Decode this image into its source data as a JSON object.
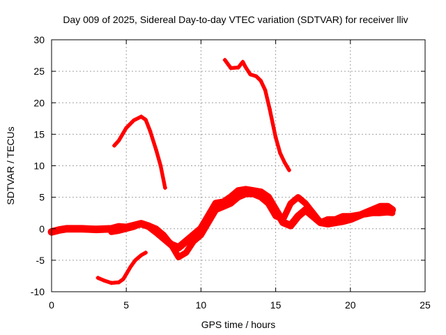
{
  "chart_data": {
    "type": "scatter",
    "title": "Day 009 of 2025, Sidereal Day-to-day VTEC variation (SDTVAR) for receiver lliv",
    "xlabel": "GPS time / hours",
    "ylabel": "SDTVAR / TECUs",
    "xlim": [
      0,
      25
    ],
    "ylim": [
      -10,
      30
    ],
    "xticks": [
      0,
      5,
      10,
      15,
      20,
      25
    ],
    "yticks": [
      -10,
      -5,
      0,
      5,
      10,
      15,
      20,
      25,
      30
    ],
    "grid": true,
    "marker": "+",
    "color": "#ff0000",
    "series": [
      {
        "name": "main-band-a",
        "band": 1.2,
        "x": [
          0,
          0.5,
          1,
          2,
          3,
          4,
          4.5,
          5,
          5.5,
          6,
          6.5,
          7,
          7.5,
          8,
          8.5,
          9,
          9.5,
          10,
          10.5,
          11,
          11.5,
          12,
          12.5,
          13,
          13.5,
          14,
          14.5,
          15,
          15.5,
          16,
          16.5,
          17,
          17.5,
          18,
          18.5,
          19,
          19.5,
          20,
          20.5,
          21,
          21.5,
          22,
          22.5,
          22.8
        ],
        "y": [
          -0.5,
          -0.2,
          0,
          0,
          -0.1,
          0,
          0.3,
          0.2,
          0.5,
          0.8,
          0.4,
          -0.5,
          -1.5,
          -2.5,
          -3,
          -2,
          -1,
          0,
          2,
          4,
          4.2,
          5,
          6,
          6.2,
          6,
          5.8,
          5,
          3,
          1,
          0.5,
          2,
          3,
          2,
          1,
          0.8,
          1,
          1.2,
          1.5,
          2,
          2.5,
          3,
          3.5,
          3.5,
          3
        ]
      },
      {
        "name": "main-band-b",
        "band": 1.0,
        "x": [
          4,
          4.5,
          5,
          5.5,
          6,
          6.5,
          7,
          7.5,
          8,
          8.5,
          9,
          9.5,
          10,
          10.5,
          11,
          11.5,
          12,
          12.5,
          13,
          13.5,
          14,
          14.5,
          15,
          15.5,
          16,
          16.5,
          17,
          17.5,
          18,
          18.5,
          19,
          19.5,
          20,
          20.5,
          21,
          21.5,
          22,
          22.5,
          22.8
        ],
        "y": [
          -0.5,
          -0.3,
          0,
          0.3,
          0.8,
          0.5,
          0,
          -1,
          -2.5,
          -4.5,
          -3.8,
          -2,
          -1,
          1,
          3,
          3.5,
          4,
          5,
          5.5,
          5.5,
          5,
          4,
          2,
          1.5,
          4,
          5,
          4,
          2.5,
          1,
          1.5,
          1.5,
          2,
          2,
          2.2,
          2.3,
          2.5,
          2.5,
          2.6,
          2.5
        ]
      },
      {
        "name": "arc-morning",
        "band": 0.6,
        "x": [
          4.2,
          4.5,
          5,
          5.5,
          6,
          6.3,
          6.6,
          7,
          7.3,
          7.6
        ],
        "y": [
          13.2,
          14,
          16,
          17.2,
          17.8,
          17.3,
          15.5,
          12.5,
          10,
          6.5
        ]
      },
      {
        "name": "arc-noon",
        "band": 0.6,
        "x": [
          11.6,
          12,
          12.5,
          12.8,
          13,
          13.3,
          13.7,
          14,
          14.3,
          14.6,
          15,
          15.3,
          15.6,
          15.9
        ],
        "y": [
          26.8,
          25.5,
          25.6,
          26.5,
          25.6,
          24.5,
          24.2,
          23.5,
          22,
          19,
          14.5,
          12,
          10.5,
          9.3
        ]
      },
      {
        "name": "arc-low",
        "band": 0.6,
        "x": [
          3.1,
          3.5,
          4,
          4.5,
          4.8,
          5,
          5.3,
          5.6,
          6,
          6.3
        ],
        "y": [
          -7.8,
          -8.2,
          -8.6,
          -8.5,
          -8,
          -7.2,
          -6,
          -5,
          -4.2,
          -3.8
        ]
      }
    ]
  }
}
